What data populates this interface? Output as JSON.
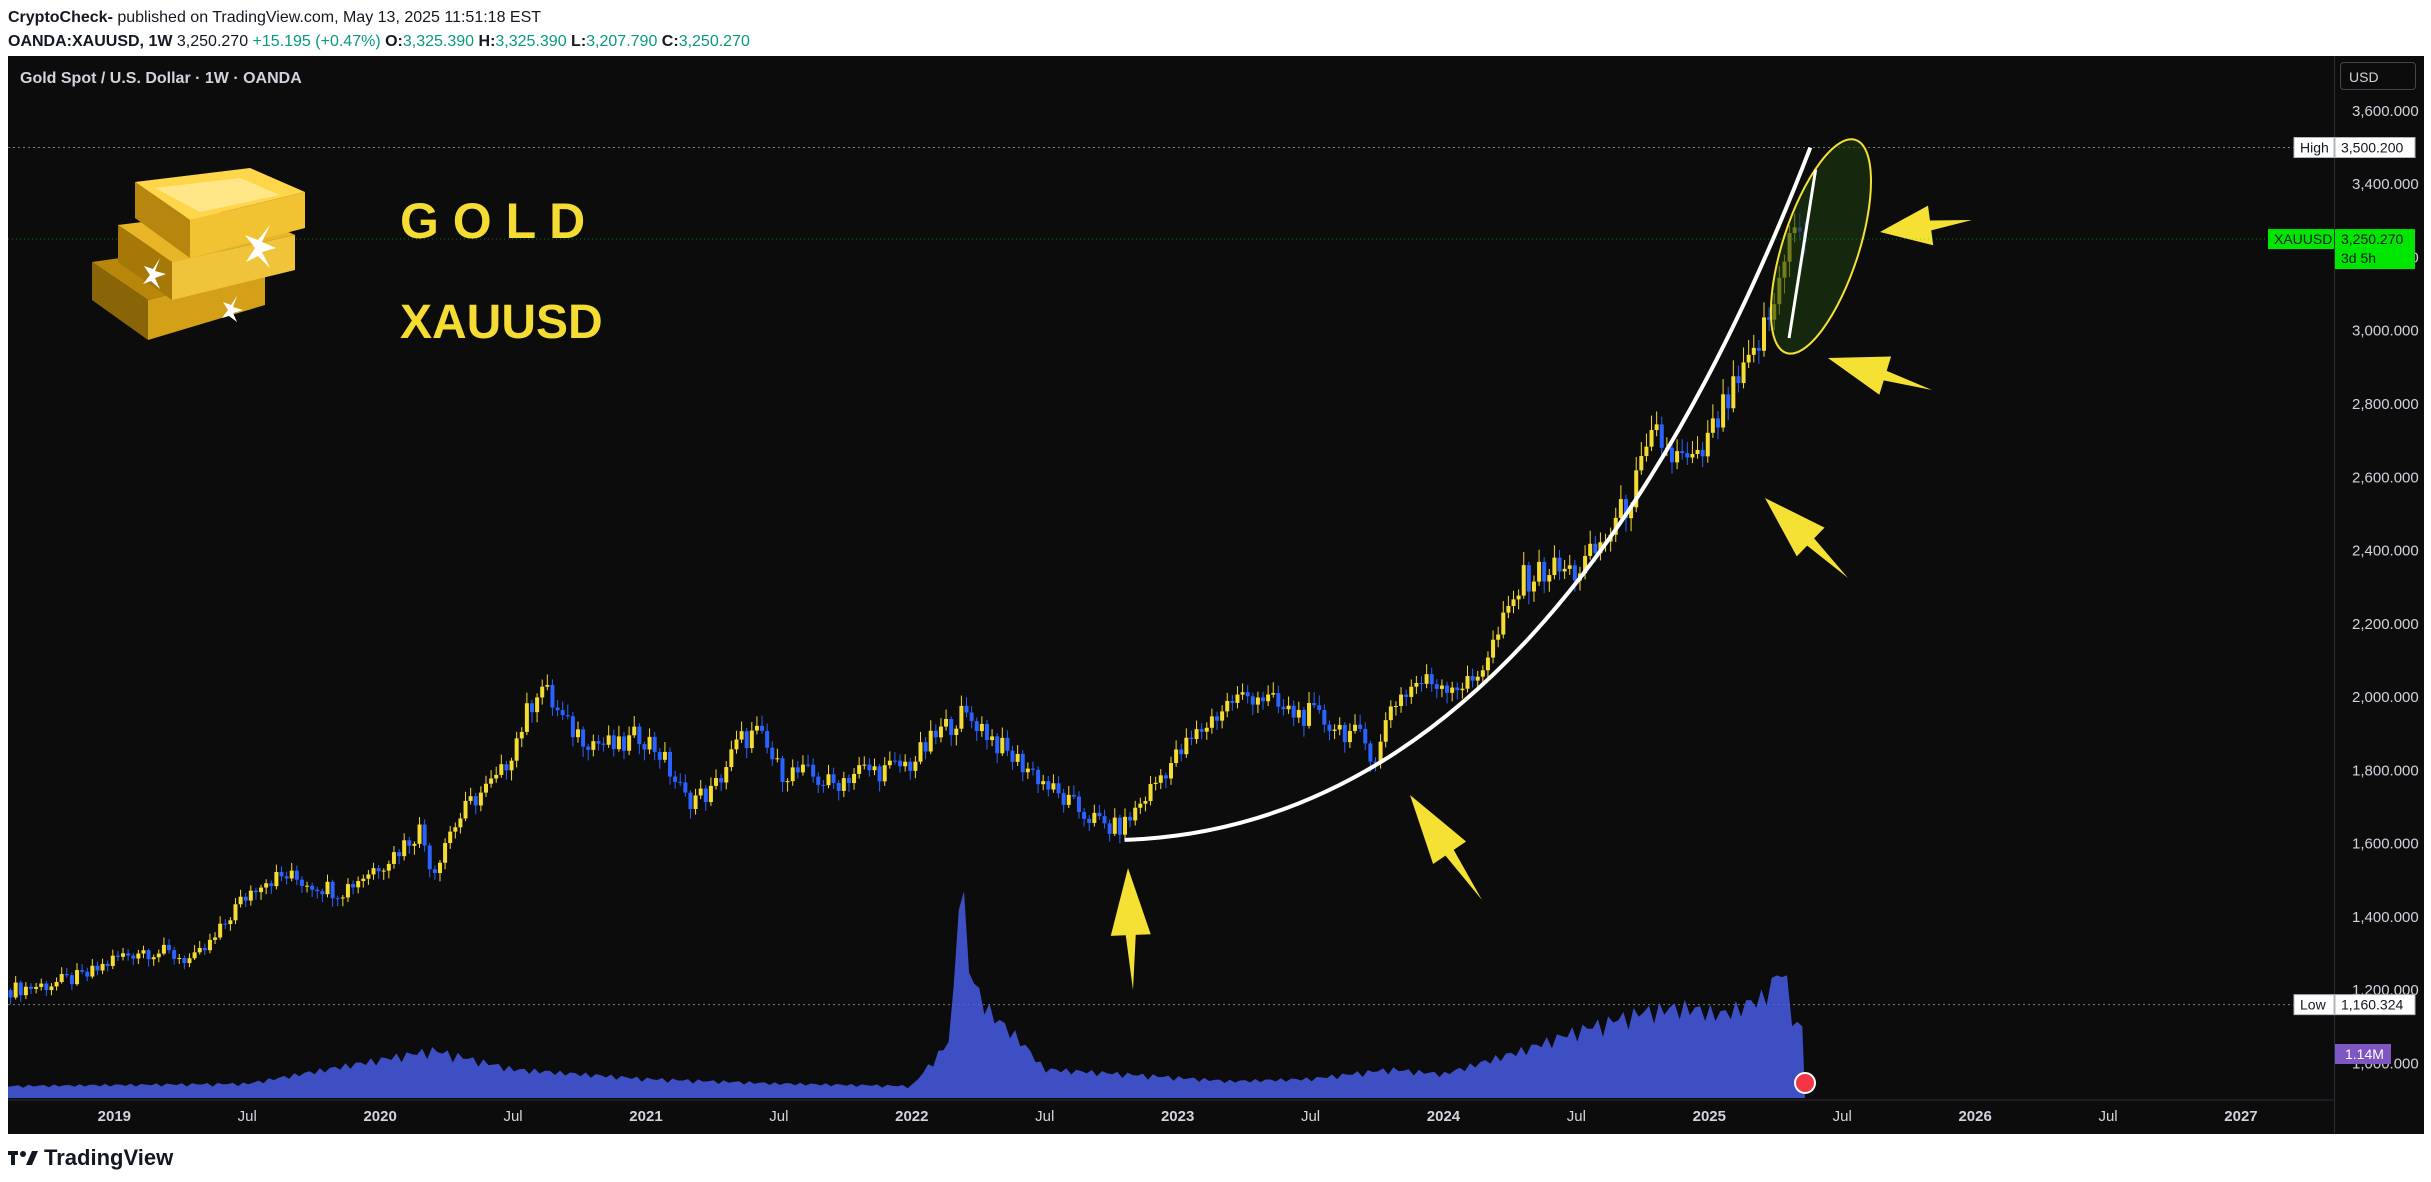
{
  "header": {
    "author": "CryptoCheck-",
    "published": " published on TradingView.com, May 13, 2025 11:51:18 EST",
    "symbol": "OANDA:XAUUSD, 1W",
    "last": "3,250.270",
    "change": "+15.195 (+0.47%)",
    "o_label": "O:",
    "o": "3,325.390",
    "h_label": "H:",
    "h": "3,325.390",
    "l_label": "L:",
    "l": "3,207.790",
    "c_label": "C:",
    "c": "3,250.270"
  },
  "symbol_title": "Gold Spot / U.S. Dollar · 1W · OANDA",
  "currency_button": "USD",
  "overlay": {
    "line1": "G O L D",
    "line2": "XAUUSD"
  },
  "markers": {
    "high_label": "High",
    "high_value": "3,500.200",
    "low_label": "Low",
    "low_value": "1,160.324",
    "current_symbol": "XAUUSD",
    "current_value": "3,250.270",
    "current_countdown": "3d 5h",
    "volume_value": "1.14M"
  },
  "footer": {
    "brand": "TradingView"
  },
  "colors": {
    "up": "#f5dc32",
    "down": "#2962ff",
    "bg": "#0c0c0c",
    "current": "#00e600",
    "volume_badge": "#7e57c2",
    "annotation": "#f5e133"
  },
  "chart_data": {
    "type": "candlestick",
    "interval": "1W",
    "ylim": [
      900,
      3750
    ],
    "y_ticks": [
      "3,600.000",
      "3,400.000",
      "3,200.000",
      "3,000.000",
      "2,800.000",
      "2,600.000",
      "2,400.000",
      "2,200.000",
      "2,000.000",
      "1,800.000",
      "1,600.000",
      "1,400.000",
      "1,200.000",
      "1,000.000"
    ],
    "y_tick_values": [
      3600,
      3400,
      3200,
      3000,
      2800,
      2600,
      2400,
      2200,
      2000,
      1800,
      1600,
      1400,
      1200,
      1000
    ],
    "x_ticks": [
      {
        "label": "2019",
        "t": 2019.0
      },
      {
        "label": "Jul",
        "t": 2019.5
      },
      {
        "label": "2020",
        "t": 2020.0
      },
      {
        "label": "Jul",
        "t": 2020.5
      },
      {
        "label": "2021",
        "t": 2021.0
      },
      {
        "label": "Jul",
        "t": 2021.5
      },
      {
        "label": "2022",
        "t": 2022.0
      },
      {
        "label": "Jul",
        "t": 2022.5
      },
      {
        "label": "2023",
        "t": 2023.0
      },
      {
        "label": "Jul",
        "t": 2023.5
      },
      {
        "label": "2024",
        "t": 2024.0
      },
      {
        "label": "Jul",
        "t": 2024.5
      },
      {
        "label": "2025",
        "t": 2025.0
      },
      {
        "label": "Jul",
        "t": 2025.5
      },
      {
        "label": "2026",
        "t": 2026.0
      },
      {
        "label": "Jul",
        "t": 2026.5
      },
      {
        "label": "2027",
        "t": 2027.0
      }
    ],
    "xlim": [
      2018.6,
      2027.35
    ],
    "high": 3500.2,
    "low": 1160.324,
    "last": 3250.27,
    "price_path": [
      [
        2018.6,
        1200
      ],
      [
        2018.75,
        1215
      ],
      [
        2018.9,
        1240
      ],
      [
        2019.0,
        1285
      ],
      [
        2019.1,
        1310
      ],
      [
        2019.2,
        1300
      ],
      [
        2019.3,
        1280
      ],
      [
        2019.38,
        1340
      ],
      [
        2019.45,
        1420
      ],
      [
        2019.55,
        1500
      ],
      [
        2019.65,
        1510
      ],
      [
        2019.75,
        1490
      ],
      [
        2019.85,
        1470
      ],
      [
        2019.95,
        1520
      ],
      [
        2020.05,
        1570
      ],
      [
        2020.15,
        1640
      ],
      [
        2020.2,
        1520
      ],
      [
        2020.25,
        1620
      ],
      [
        2020.35,
        1720
      ],
      [
        2020.45,
        1780
      ],
      [
        2020.55,
        1950
      ],
      [
        2020.6,
        2040
      ],
      [
        2020.7,
        1920
      ],
      [
        2020.8,
        1880
      ],
      [
        2020.9,
        1860
      ],
      [
        2020.98,
        1900
      ],
      [
        2021.05,
        1850
      ],
      [
        2021.15,
        1720
      ],
      [
        2021.25,
        1740
      ],
      [
        2021.35,
        1880
      ],
      [
        2021.42,
        1900
      ],
      [
        2021.5,
        1800
      ],
      [
        2021.6,
        1790
      ],
      [
        2021.7,
        1760
      ],
      [
        2021.8,
        1800
      ],
      [
        2021.9,
        1800
      ],
      [
        2022.0,
        1820
      ],
      [
        2022.1,
        1900
      ],
      [
        2022.18,
        1950
      ],
      [
        2022.25,
        1930
      ],
      [
        2022.35,
        1850
      ],
      [
        2022.45,
        1800
      ],
      [
        2022.55,
        1730
      ],
      [
        2022.65,
        1680
      ],
      [
        2022.75,
        1640
      ],
      [
        2022.8,
        1650
      ],
      [
        2022.85,
        1700
      ],
      [
        2022.95,
        1800
      ],
      [
        2023.05,
        1880
      ],
      [
        2023.1,
        1920
      ],
      [
        2023.2,
        1990
      ],
      [
        2023.3,
        2010
      ],
      [
        2023.4,
        1960
      ],
      [
        2023.5,
        1950
      ],
      [
        2023.6,
        1920
      ],
      [
        2023.7,
        1880
      ],
      [
        2023.75,
        1830
      ],
      [
        2023.8,
        1980
      ],
      [
        2023.9,
        2040
      ],
      [
        2024.0,
        2040
      ],
      [
        2024.1,
        2030
      ],
      [
        2024.2,
        2160
      ],
      [
        2024.3,
        2320
      ],
      [
        2024.4,
        2350
      ],
      [
        2024.5,
        2340
      ],
      [
        2024.6,
        2420
      ],
      [
        2024.7,
        2540
      ],
      [
        2024.8,
        2720
      ],
      [
        2024.85,
        2660
      ],
      [
        2024.95,
        2630
      ],
      [
        2025.05,
        2780
      ],
      [
        2025.15,
        2900
      ],
      [
        2025.2,
        2990
      ],
      [
        2025.25,
        3080
      ],
      [
        2025.3,
        3300
      ],
      [
        2025.33,
        3250
      ],
      [
        2025.36,
        3250
      ]
    ],
    "volume_path": [
      [
        2018.6,
        0.05
      ],
      [
        2019.5,
        0.06
      ],
      [
        2020.2,
        0.2
      ],
      [
        2020.5,
        0.12
      ],
      [
        2021.0,
        0.08
      ],
      [
        2021.5,
        0.06
      ],
      [
        2022.0,
        0.05
      ],
      [
        2022.15,
        0.25
      ],
      [
        2022.18,
        1.0
      ],
      [
        2022.22,
        0.5
      ],
      [
        2022.3,
        0.35
      ],
      [
        2022.4,
        0.25
      ],
      [
        2022.5,
        0.12
      ],
      [
        2022.8,
        0.1
      ],
      [
        2023.2,
        0.07
      ],
      [
        2023.5,
        0.08
      ],
      [
        2023.8,
        0.12
      ],
      [
        2024.0,
        0.1
      ],
      [
        2024.3,
        0.2
      ],
      [
        2024.5,
        0.28
      ],
      [
        2024.75,
        0.36
      ],
      [
        2024.9,
        0.38
      ],
      [
        2025.05,
        0.35
      ],
      [
        2025.2,
        0.42
      ],
      [
        2025.28,
        0.55
      ],
      [
        2025.32,
        0.3
      ],
      [
        2025.36,
        0.3
      ]
    ],
    "volume_ref": 1.14
  }
}
